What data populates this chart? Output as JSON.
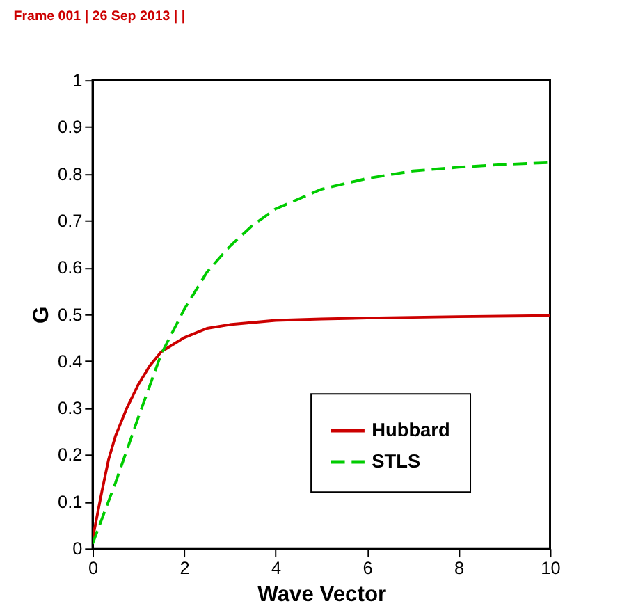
{
  "chart_data": {
    "type": "line",
    "xlabel": "Wave Vector",
    "ylabel": "G",
    "annotations": [
      "Frame 001 | 26 Sep 2013 | |"
    ],
    "xlim": [
      0,
      10
    ],
    "xticks": [
      0,
      2,
      4,
      6,
      8,
      10
    ],
    "ylim": [
      0,
      1
    ],
    "yticks": [
      0,
      0.1,
      0.2,
      0.3,
      0.4,
      0.5,
      0.6,
      0.7,
      0.8,
      0.9,
      1
    ],
    "grid": false,
    "legend": "bottom right",
    "marker": "none",
    "series": [
      {
        "name": "Hubbard",
        "color": "#cc0000",
        "line_style": "solid",
        "x": [
          0,
          0.1,
          0.2,
          0.35,
          0.5,
          0.75,
          1,
          1.25,
          1.5,
          2,
          2.5,
          3,
          4,
          5,
          6,
          8,
          10
        ],
        "values": [
          0.02,
          0.07,
          0.12,
          0.19,
          0.24,
          0.3,
          0.35,
          0.39,
          0.42,
          0.45,
          0.47,
          0.478,
          0.487,
          0.49,
          0.492,
          0.495,
          0.497
        ]
      },
      {
        "name": "STLS",
        "color": "#00cc00",
        "line_style": "dashed",
        "x": [
          0,
          0.5,
          1,
          1.5,
          2,
          2.5,
          3,
          3.5,
          4,
          5,
          6,
          7,
          8,
          9,
          10
        ],
        "values": [
          0.01,
          0.14,
          0.28,
          0.415,
          0.51,
          0.59,
          0.645,
          0.69,
          0.725,
          0.767,
          0.79,
          0.806,
          0.814,
          0.82,
          0.824
        ]
      }
    ]
  }
}
